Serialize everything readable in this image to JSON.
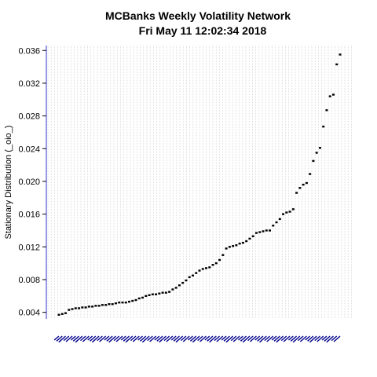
{
  "chart_data": {
    "type": "scatter",
    "title": "MCBanks  Weekly Volatility Network",
    "subtitle": "Fri May 11 12:02:34 2018",
    "xlabel": "",
    "ylabel": "Stationary Distribution (_oio_)",
    "ylim": [
      0.0032,
      0.0366
    ],
    "yticks": [
      0.004,
      0.008,
      0.012,
      0.016,
      0.02,
      0.024,
      0.028,
      0.032,
      0.036
    ],
    "ytick_labels": [
      "0.004",
      "0.008",
      "0.012",
      "0.016",
      "0.020",
      "0.024",
      "0.028",
      "0.032",
      "0.036"
    ],
    "grid": true,
    "x_tick_labels_legible": false,
    "marker_color": "#000000",
    "axis_color": "#3333cc",
    "grid_color": "#c8c8c8",
    "x_label_color": "#00008b",
    "values": [
      0.0037,
      0.0038,
      0.0039,
      0.0043,
      0.0044,
      0.0045,
      0.0045,
      0.0046,
      0.0046,
      0.0047,
      0.0047,
      0.0048,
      0.0048,
      0.0049,
      0.0049,
      0.005,
      0.005,
      0.0051,
      0.0052,
      0.0052,
      0.0052,
      0.0053,
      0.0054,
      0.0055,
      0.0057,
      0.0058,
      0.006,
      0.0061,
      0.0062,
      0.0062,
      0.0063,
      0.0064,
      0.0064,
      0.0065,
      0.0068,
      0.007,
      0.0073,
      0.0076,
      0.0079,
      0.0083,
      0.0085,
      0.0088,
      0.0091,
      0.0093,
      0.0094,
      0.0095,
      0.0098,
      0.01,
      0.0104,
      0.011,
      0.0118,
      0.012,
      0.0121,
      0.0122,
      0.0124,
      0.0125,
      0.0127,
      0.013,
      0.0133,
      0.0137,
      0.0138,
      0.0139,
      0.014,
      0.014,
      0.0146,
      0.015,
      0.0154,
      0.016,
      0.0162,
      0.0163,
      0.0166,
      0.0186,
      0.0192,
      0.0196,
      0.0198,
      0.0209,
      0.0225,
      0.0235,
      0.0241,
      0.0267,
      0.0287,
      0.0304,
      0.0306,
      0.0343,
      0.0355
    ]
  }
}
